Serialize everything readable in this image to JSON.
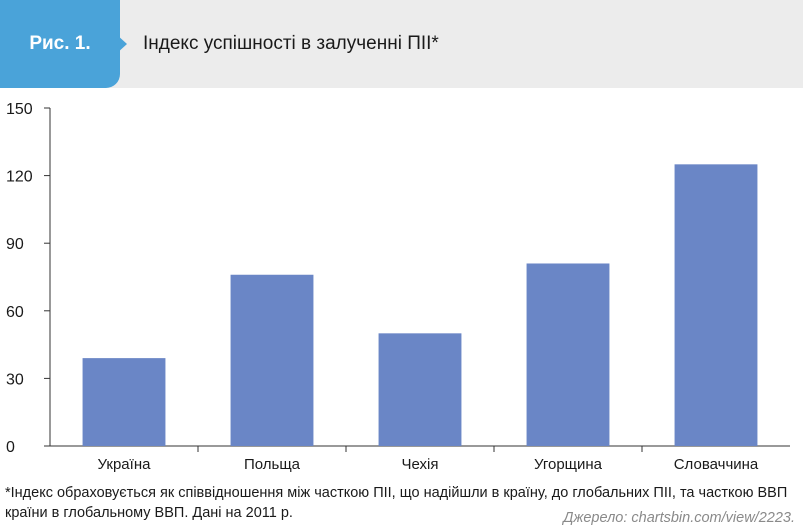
{
  "figure": {
    "label": "Рис. 1.",
    "title": "Індекс успішності в залученні ПІІ*"
  },
  "colors": {
    "badge": "#4aa3d9",
    "header_bg": "#ececec",
    "bar": "#6a86c6"
  },
  "chart_data": {
    "type": "bar",
    "title": "Індекс успішності в залученні ПІІ*",
    "categories": [
      "Україна",
      "Польща",
      "Чехія",
      "Угорщина",
      "Словаччина"
    ],
    "values": [
      39,
      76,
      50,
      81,
      125
    ],
    "ylim": [
      0,
      150
    ],
    "yticks": [
      0,
      30,
      60,
      90,
      120,
      150
    ],
    "xlabel": "",
    "ylabel": "",
    "grid": false,
    "legend": "none"
  },
  "footnote": "*Індекс обраховується як співвідношення між часткою ПІІ, що надійшли в країну, до глобальних ПІІ, та часткою ВВП країни в глобальному ВВП. Дані на 2011 р.",
  "source": "Джерело: chartsbin.com/view/2223."
}
